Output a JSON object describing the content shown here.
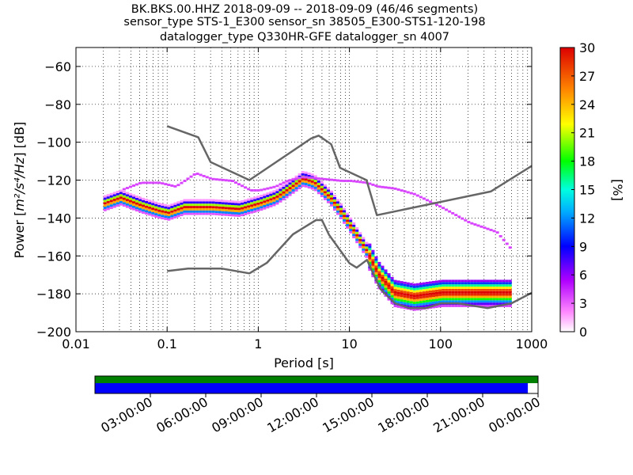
{
  "chart_data": {
    "type": "heatmap",
    "title_lines": [
      "BK.BKS.00.HHZ   2018-09-09 -- 2018-09-09  (46/46 segments)",
      "sensor_type STS-1_E300 sensor_sn 38505_E300-STS1-120-198",
      "datalogger_type Q330HR-GFE datalogger_sn 4007"
    ],
    "xlabel": "Period [s]",
    "ylabel_prefix": "Power [",
    "ylabel_math": "m²/s⁴/Hz",
    "ylabel_suffix": "] [dB]",
    "xscale": "log",
    "xlim": [
      0.01,
      1000
    ],
    "ylim": [
      -200,
      -50
    ],
    "x_ticks": [
      0.01,
      0.1,
      1,
      10,
      100,
      1000
    ],
    "x_tick_labels": [
      "0.01",
      "0.1",
      "1",
      "10",
      "100",
      "1000"
    ],
    "y_ticks": [
      -60,
      -80,
      -100,
      -120,
      -140,
      -160,
      -180,
      -200
    ],
    "y_tick_labels": [
      "−60",
      "−80",
      "−100",
      "−120",
      "−140",
      "−160",
      "−180",
      "−200"
    ],
    "grid": true,
    "colorbar": {
      "label": "[%]",
      "range": [
        0,
        30
      ],
      "ticks": [
        0,
        3,
        6,
        9,
        12,
        15,
        18,
        21,
        24,
        27,
        30
      ],
      "tick_labels": [
        "0",
        "3",
        "6",
        "9",
        "12",
        "15",
        "18",
        "21",
        "24",
        "27",
        "30"
      ]
    },
    "noise_model_high": {
      "period": [
        0.1,
        0.22,
        0.3,
        0.8,
        3.8,
        4.6,
        6.3,
        7.9,
        15.4,
        20,
        354.8,
        1000
      ],
      "power": [
        -91.5,
        -97.4,
        -110.5,
        -120,
        -98,
        -96.5,
        -101,
        -113.5,
        -120,
        -138.5,
        -126,
        -112.5
      ]
    },
    "noise_model_low": {
      "period": [
        0.1,
        0.17,
        0.4,
        0.8,
        1.24,
        2.4,
        4.3,
        5,
        6,
        10,
        12,
        15.6,
        21.9,
        31.6,
        45,
        70,
        101,
        154,
        328,
        600,
        1000
      ],
      "power": [
        -168,
        -166.7,
        -166.7,
        -169.2,
        -163.7,
        -148.6,
        -141.1,
        -141.1,
        -149,
        -163.8,
        -166.2,
        -162.1,
        -177.5,
        -185,
        -187.5,
        -187.5,
        -185,
        -185,
        -187.5,
        -185,
        -179.5
      ]
    },
    "psd_mode": {
      "period": [
        0.02,
        0.03,
        0.05,
        0.08,
        0.1,
        0.15,
        0.3,
        0.6,
        1,
        1.5,
        2,
        3,
        4,
        6,
        8,
        10,
        15,
        20,
        30,
        50,
        100,
        200,
        400,
        600
      ],
      "power": [
        -133,
        -130,
        -134,
        -137,
        -138,
        -135,
        -135,
        -136,
        -133,
        -130,
        -126,
        -120,
        -122,
        -130,
        -138,
        -145,
        -158,
        -170,
        -180,
        -182,
        -180,
        -180,
        -180,
        -180
      ]
    },
    "psd_outliers": {
      "period": [
        0.03,
        0.05,
        0.08,
        0.12,
        0.15,
        0.2,
        0.3,
        0.5,
        0.8,
        1,
        1.5,
        2,
        3,
        5,
        8,
        10,
        15,
        20,
        30,
        50,
        100,
        200,
        400,
        600
      ],
      "power": [
        -126,
        -122,
        -122,
        -124,
        -121,
        -117,
        -120,
        -121,
        -126,
        -126,
        -124,
        -121,
        -119,
        -120,
        -121,
        -121,
        -122,
        -124,
        -125,
        -128,
        -135,
        -143,
        -148,
        -158
      ]
    },
    "timeline": {
      "tick_labels": [
        "03:00:00",
        "06:00:00",
        "09:00:00",
        "12:00:00",
        "15:00:00",
        "18:00:00",
        "21:00:00",
        "00:00:00"
      ],
      "coverage_fraction": 0.977,
      "data_color": "#008000",
      "psd_color": "#0000ff"
    },
    "colors": {
      "noise_model": "#666666",
      "frame": "#000000",
      "grid": "#000000"
    }
  }
}
